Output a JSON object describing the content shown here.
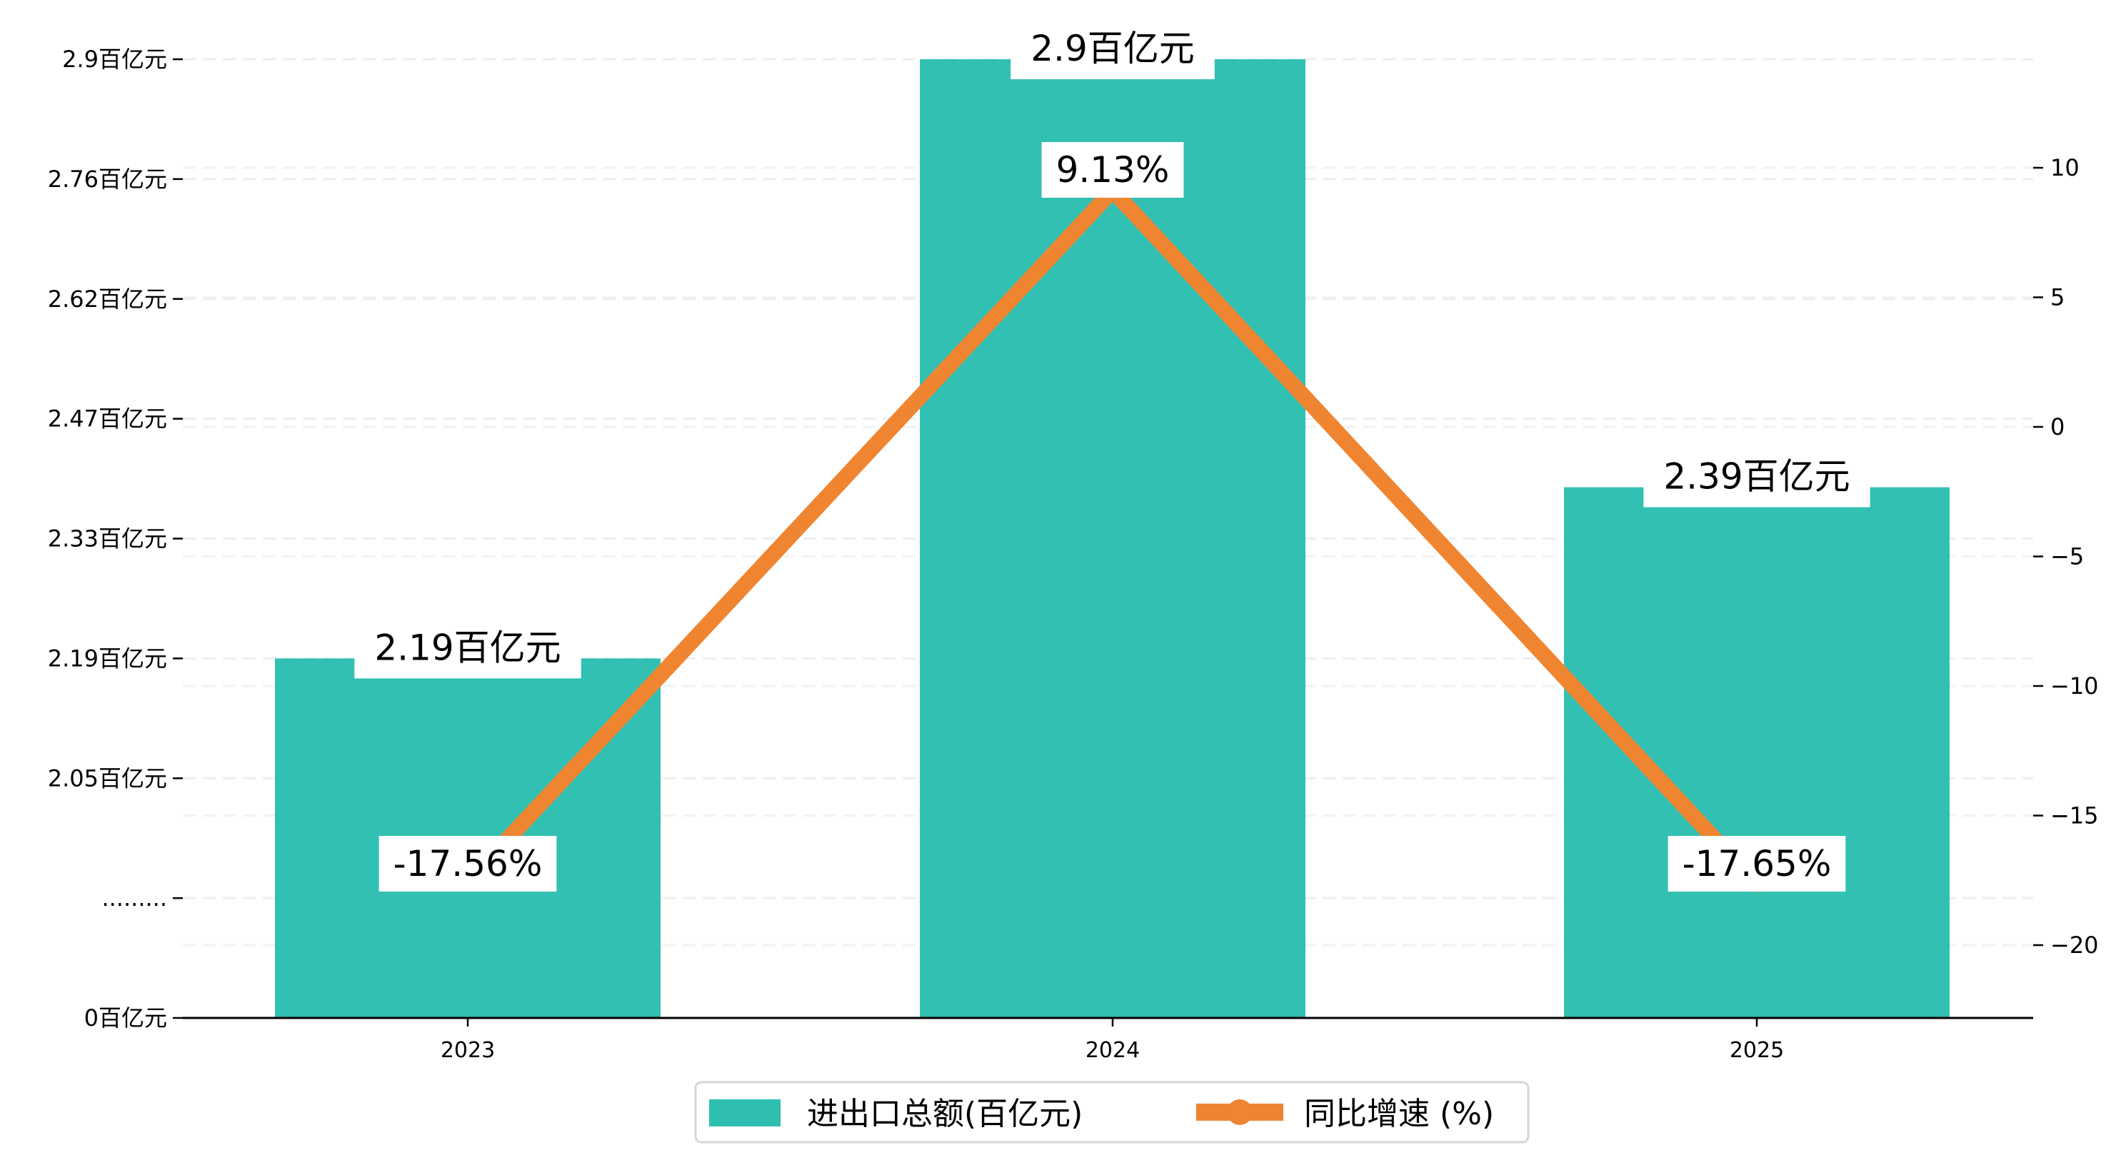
{
  "chart_data": {
    "type": "bar+line",
    "categories": [
      "2023",
      "2024",
      "2025"
    ],
    "series": [
      {
        "name": "进出口总额(百亿元)",
        "type": "bar",
        "axis": "left",
        "color": "#2ebfb1",
        "values": [
          2.19,
          2.9,
          2.39
        ],
        "labels": [
          "2.19百亿元",
          "2.9百亿元",
          "2.39百亿元"
        ]
      },
      {
        "name": "同比增速 (%)",
        "type": "line",
        "axis": "right",
        "color": "#ef8531",
        "values": [
          -17.56,
          9.13,
          -17.65
        ],
        "labels": [
          "-17.56%",
          "9.13%",
          "-17.65%"
        ]
      }
    ],
    "left_axis": {
      "broken": true,
      "ticks": [
        {
          "value": 0,
          "label": "0百亿元"
        },
        {
          "value": null,
          "label": "........."
        },
        {
          "value": 2.05,
          "label": "2.05百亿元"
        },
        {
          "value": 2.19,
          "label": "2.19百亿元"
        },
        {
          "value": 2.33,
          "label": "2.33百亿元"
        },
        {
          "value": 2.47,
          "label": "2.47百亿元"
        },
        {
          "value": 2.62,
          "label": "2.62百亿元"
        },
        {
          "value": 2.76,
          "label": "2.76百亿元"
        },
        {
          "value": 2.9,
          "label": "2.9百亿元"
        }
      ]
    },
    "right_axis": {
      "ticks": [
        -20,
        -15,
        -10,
        -5,
        0,
        5,
        10
      ],
      "ylim": [
        -23,
        14.5
      ]
    },
    "grid": "horizontal dashed",
    "legend_position": "bottom-center"
  }
}
